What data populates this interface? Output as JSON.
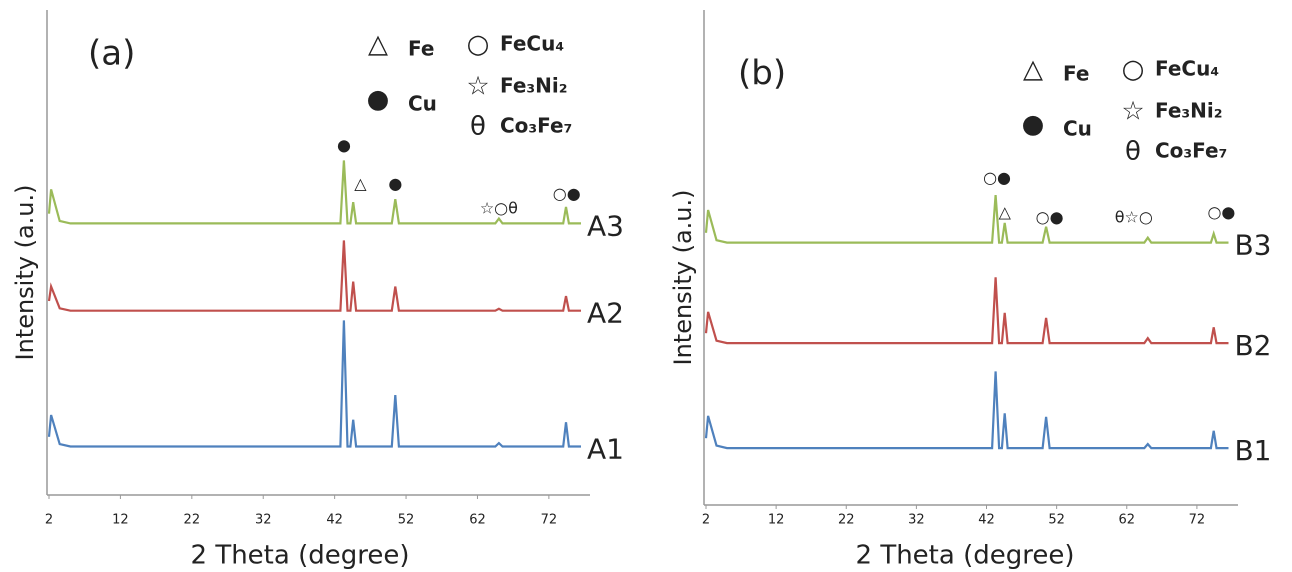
{
  "chart_data": [
    {
      "type": "line",
      "title": "(a)",
      "x_label": "2 Theta (degree)",
      "y_label": "Intensity (a.u.)",
      "xlim": [
        2,
        80
      ],
      "xticks": [
        2,
        12,
        22,
        32,
        42,
        52,
        62,
        72
      ],
      "ylim": [
        0,
        100
      ],
      "x": [
        2,
        2.3,
        3.5,
        5,
        42.8,
        43.3,
        43.8,
        44.2,
        44.6,
        45,
        50,
        50.5,
        51,
        64.5,
        65,
        65.5,
        74,
        74.4,
        74.8,
        76.5
      ],
      "series": [
        {
          "name": "A1",
          "color": "#4f81bd",
          "values": [
            12,
            16.5,
            10.5,
            10,
            10,
            36,
            10,
            10,
            15.5,
            10,
            10,
            20.6,
            10,
            10,
            10.7,
            10,
            10,
            15,
            10,
            10
          ]
        },
        {
          "name": "A2",
          "color": "#c0504d",
          "values": [
            40,
            43,
            38.5,
            38,
            38,
            52.5,
            38,
            38,
            44,
            38,
            38,
            43,
            38,
            38,
            38.4,
            38,
            38,
            41,
            38,
            38
          ]
        },
        {
          "name": "A3",
          "color": "#9bbb59",
          "values": [
            58,
            63,
            56.5,
            56,
            56,
            69,
            56,
            56,
            60.4,
            56,
            56,
            61,
            56,
            56,
            57,
            56,
            56,
            59.4,
            56,
            56
          ]
        }
      ],
      "annotations": [
        {
          "text": "●",
          "x": 43.3,
          "y": 72
        },
        {
          "text": "△",
          "x": 45.6,
          "y": 64
        },
        {
          "text": "●",
          "x": 50.5,
          "y": 64
        },
        {
          "text": "☆○θ",
          "x": 65,
          "y": 59
        },
        {
          "text": "○●",
          "x": 74.5,
          "y": 62
        }
      ],
      "legend": [
        {
          "symbol": "△",
          "label": "Fe"
        },
        {
          "symbol": "●",
          "label": "Cu"
        },
        {
          "symbol": "○",
          "label": "FeCu₄"
        },
        {
          "symbol": "☆",
          "label": "Fe₃Ni₂"
        },
        {
          "symbol": "θ",
          "label": "Co₃Fe₇"
        }
      ]
    },
    {
      "type": "line",
      "title": "(b)",
      "x_label": "2 Theta (degree)",
      "y_label": "Intensity (a.u.)",
      "xlim": [
        2,
        80
      ],
      "xticks": [
        2,
        12,
        22,
        32,
        42,
        52,
        62,
        72
      ],
      "ylim": [
        0,
        100
      ],
      "x": [
        2,
        2.3,
        3.5,
        5,
        42.8,
        43.3,
        43.8,
        44.2,
        44.6,
        45,
        50,
        50.5,
        51,
        64.5,
        65,
        65.5,
        74,
        74.4,
        74.8,
        76.5
      ],
      "series": [
        {
          "name": "B1",
          "color": "#4f81bd",
          "values": [
            13.5,
            18,
            12,
            11.5,
            11.5,
            27,
            11.5,
            11.5,
            18.5,
            11.5,
            11.5,
            17.8,
            11.5,
            11.5,
            12.3,
            11.5,
            11.5,
            15,
            11.5,
            11.5
          ]
        },
        {
          "name": "B2",
          "color": "#c0504d",
          "values": [
            34.7,
            39,
            33.2,
            32.7,
            32.7,
            46,
            32.7,
            32.7,
            38.8,
            32.7,
            32.7,
            37.8,
            32.7,
            32.7,
            33.7,
            32.7,
            32.7,
            35.9,
            32.7,
            32.7
          ]
        },
        {
          "name": "B3",
          "color": "#9bbb59",
          "values": [
            55,
            59.6,
            53.5,
            53,
            53,
            62.6,
            53,
            53,
            57,
            53,
            53,
            56.2,
            53,
            53,
            54,
            53,
            53,
            54.8,
            53,
            53
          ]
        }
      ],
      "annotations": [
        {
          "text": "○●",
          "x": 43.5,
          "y": 66
        },
        {
          "text": "△",
          "x": 44.6,
          "y": 59
        },
        {
          "text": "○●",
          "x": 51,
          "y": 58
        },
        {
          "text": "θ☆○",
          "x": 63,
          "y": 58
        },
        {
          "text": "○●",
          "x": 75.5,
          "y": 59
        }
      ],
      "legend": [
        {
          "symbol": "△",
          "label": "Fe"
        },
        {
          "symbol": "●",
          "label": "Cu"
        },
        {
          "symbol": "○",
          "label": "FeCu₄"
        },
        {
          "symbol": "☆",
          "label": "Fe₃Ni₂"
        },
        {
          "symbol": "θ",
          "label": "Co₃Fe₇"
        }
      ]
    }
  ]
}
